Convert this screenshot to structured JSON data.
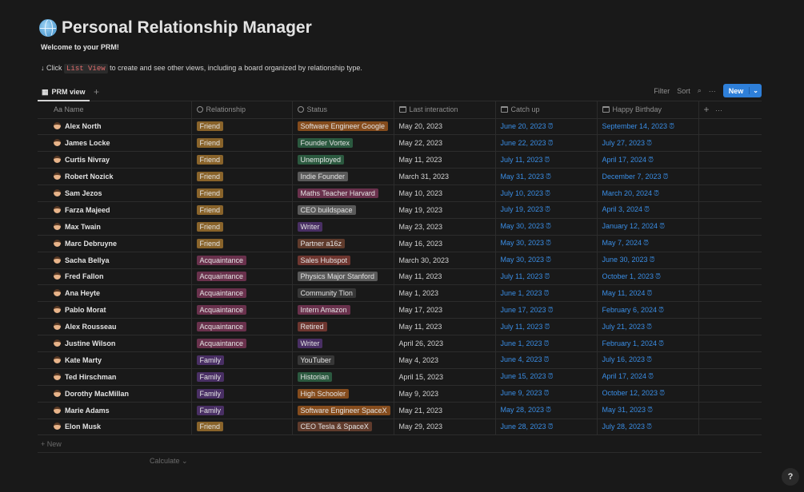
{
  "page": {
    "title": "Personal Relationship Manager",
    "icon": "globe-icon",
    "welcome": "Welcome to your PRM!",
    "hint_prefix": "↓ Click",
    "hint_code": "List View",
    "hint_suffix": "to create and see other views, including a board organized by relationship type."
  },
  "view": {
    "tab": "PRM view",
    "add": "+",
    "filter": "Filter",
    "sort": "Sort",
    "more": "···",
    "new": "New"
  },
  "columns": {
    "name": "Name",
    "name_prefix": "Aa",
    "relationship": "Relationship",
    "status": "Status",
    "last": "Last interaction",
    "catch": "Catch up",
    "birthday": "Happy Birthday",
    "add": "+",
    "more": "···"
  },
  "colors": {
    "Friend": "#89632a",
    "Acquaintance": "#69314c",
    "Family": "#492f64",
    "orange": "#854c1d",
    "green": "#2b593f",
    "gray": "#5a5a5a",
    "default": "#373737",
    "brown": "#603b2c",
    "red": "#6e3630",
    "pink": "#69314c",
    "purple": "#492f64",
    "accent": "#2e7fd9"
  },
  "rows": [
    {
      "name": "Alex North",
      "rel": "Friend",
      "status": "Software Engineer Google",
      "sc": "orange",
      "last": "May 20, 2023",
      "catch": "June 20, 2023",
      "bday": "September 14, 2023"
    },
    {
      "name": "James Locke",
      "rel": "Friend",
      "status": "Founder Vortex",
      "sc": "green",
      "last": "May 22, 2023",
      "catch": "June 22, 2023",
      "bday": "July 27, 2023"
    },
    {
      "name": "Curtis Nivray",
      "rel": "Friend",
      "status": "Unemployed",
      "sc": "green",
      "last": "May 11, 2023",
      "catch": "July 11, 2023",
      "bday": "April 17, 2024"
    },
    {
      "name": "Robert Nozick",
      "rel": "Friend",
      "status": "Indie Founder",
      "sc": "gray",
      "last": "March 31, 2023",
      "catch": "May 31, 2023",
      "bday": "December 7, 2023"
    },
    {
      "name": "Sam Jezos",
      "rel": "Friend",
      "status": "Maths Teacher Harvard",
      "sc": "pink",
      "last": "May 10, 2023",
      "catch": "July 10, 2023",
      "bday": "March 20, 2024"
    },
    {
      "name": "Farza Majeed",
      "rel": "Friend",
      "status": "CEO buildspace",
      "sc": "gray",
      "last": "May 19, 2023",
      "catch": "July 19, 2023",
      "bday": "April 3, 2024"
    },
    {
      "name": "Max Twain",
      "rel": "Friend",
      "status": "Writer",
      "sc": "purple",
      "last": "May 23, 2023",
      "catch": "May 30, 2023",
      "bday": "January 12, 2024"
    },
    {
      "name": "Marc Debruyne",
      "rel": "Friend",
      "status": "Partner a16z",
      "sc": "brown",
      "last": "May 16, 2023",
      "catch": "May 30, 2023",
      "bday": "May 7, 2024"
    },
    {
      "name": "Sacha Bellya",
      "rel": "Acquaintance",
      "status": "Sales Hubspot",
      "sc": "red",
      "last": "March 30, 2023",
      "catch": "May 30, 2023",
      "bday": "June 30, 2023"
    },
    {
      "name": "Fred Fallon",
      "rel": "Acquaintance",
      "status": "Physics Major Stanford",
      "sc": "gray",
      "last": "May 11, 2023",
      "catch": "July 11, 2023",
      "bday": "October 1, 2023"
    },
    {
      "name": "Ana Heyte",
      "rel": "Acquaintance",
      "status": "Community Tlon",
      "sc": "default",
      "last": "May 1, 2023",
      "catch": "June 1, 2023",
      "bday": "May 11, 2024"
    },
    {
      "name": "Pablo Morat",
      "rel": "Acquaintance",
      "status": "Intern Amazon",
      "sc": "pink",
      "last": "May 17, 2023",
      "catch": "June 17, 2023",
      "bday": "February 6, 2024"
    },
    {
      "name": "Alex Rousseau",
      "rel": "Acquaintance",
      "status": "Retired",
      "sc": "red",
      "last": "May 11, 2023",
      "catch": "July 11, 2023",
      "bday": "July 21, 2023"
    },
    {
      "name": "Justine Wilson",
      "rel": "Acquaintance",
      "status": "Writer",
      "sc": "purple",
      "last": "April 26, 2023",
      "catch": "June 1, 2023",
      "bday": "February 1, 2024"
    },
    {
      "name": "Kate Marty",
      "rel": "Family",
      "status": "YouTuber",
      "sc": "default",
      "last": "May 4, 2023",
      "catch": "June 4, 2023",
      "bday": "July 16, 2023"
    },
    {
      "name": "Ted Hirschman",
      "rel": "Family",
      "status": "Historian",
      "sc": "green",
      "last": "April 15, 2023",
      "catch": "June 15, 2023",
      "bday": "April 17, 2024"
    },
    {
      "name": "Dorothy MacMillan",
      "rel": "Family",
      "status": "High Schooler",
      "sc": "orange",
      "last": "May 9, 2023",
      "catch": "June 9, 2023",
      "bday": "October 12, 2023"
    },
    {
      "name": "Marie Adams",
      "rel": "Family",
      "status": "Software Engineer SpaceX",
      "sc": "orange",
      "last": "May 21, 2023",
      "catch": "May 28, 2023",
      "bday": "May 31, 2023"
    },
    {
      "name": "Elon Musk",
      "rel": "Friend",
      "status": "CEO Tesla & SpaceX",
      "sc": "brown",
      "last": "May 29, 2023",
      "catch": "June 28, 2023",
      "bday": "July 28, 2023"
    }
  ],
  "footer": {
    "new": "+ New",
    "calculate": "Calculate ⌄",
    "help": "?"
  }
}
